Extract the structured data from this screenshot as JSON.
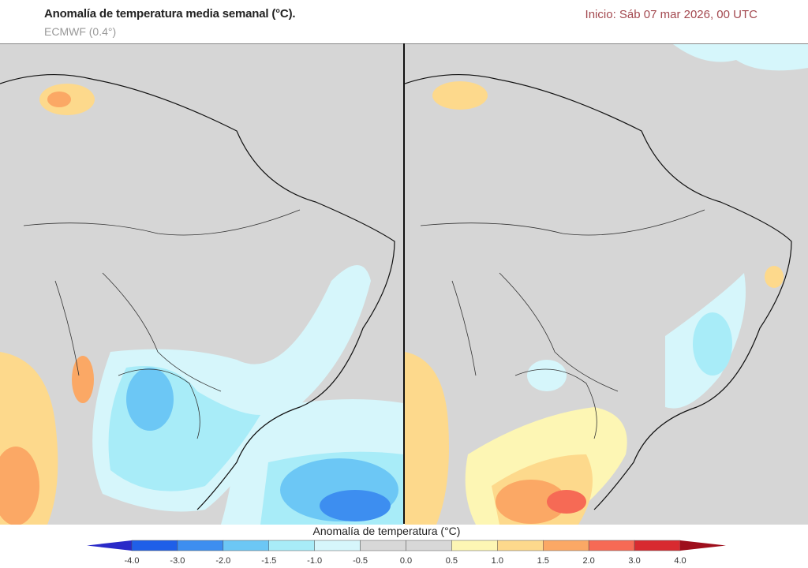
{
  "header": {
    "title": "Anomalía de temperatura media semanal (°C).",
    "model": "ECMWF (0.4°)",
    "init": "Inicio: Sáb 07 mar 2026, 00 UTC"
  },
  "colorbar": {
    "title": "Anomalía de temperatura (°C)",
    "ticks": [
      "-4.0",
      "-3.0",
      "-2.0",
      "-1.5",
      "-1.0",
      "-0.5",
      "0.0",
      "0.5",
      "1.0",
      "1.5",
      "2.0",
      "3.0",
      "4.0"
    ],
    "under_color": "#2a2ac8",
    "over_color": "#9e0f1c",
    "colors": [
      "#1f5fe8",
      "#3d8ef0",
      "#6cc7f5",
      "#a8ecf8",
      "#d6f6fb",
      "#d8d8d8",
      "#d8d8d8",
      "#fdf6b4",
      "#fdd98c",
      "#fba865",
      "#f66a55",
      "#d82a30"
    ]
  },
  "panels": [
    {
      "id": "week-1",
      "dominant": "cool anomalies over southern Brazil, Paraguay and South Atlantic"
    },
    {
      "id": "week-2",
      "dominant": "warm anomalies over Argentina, Uruguay and southern Brazil"
    }
  ]
}
